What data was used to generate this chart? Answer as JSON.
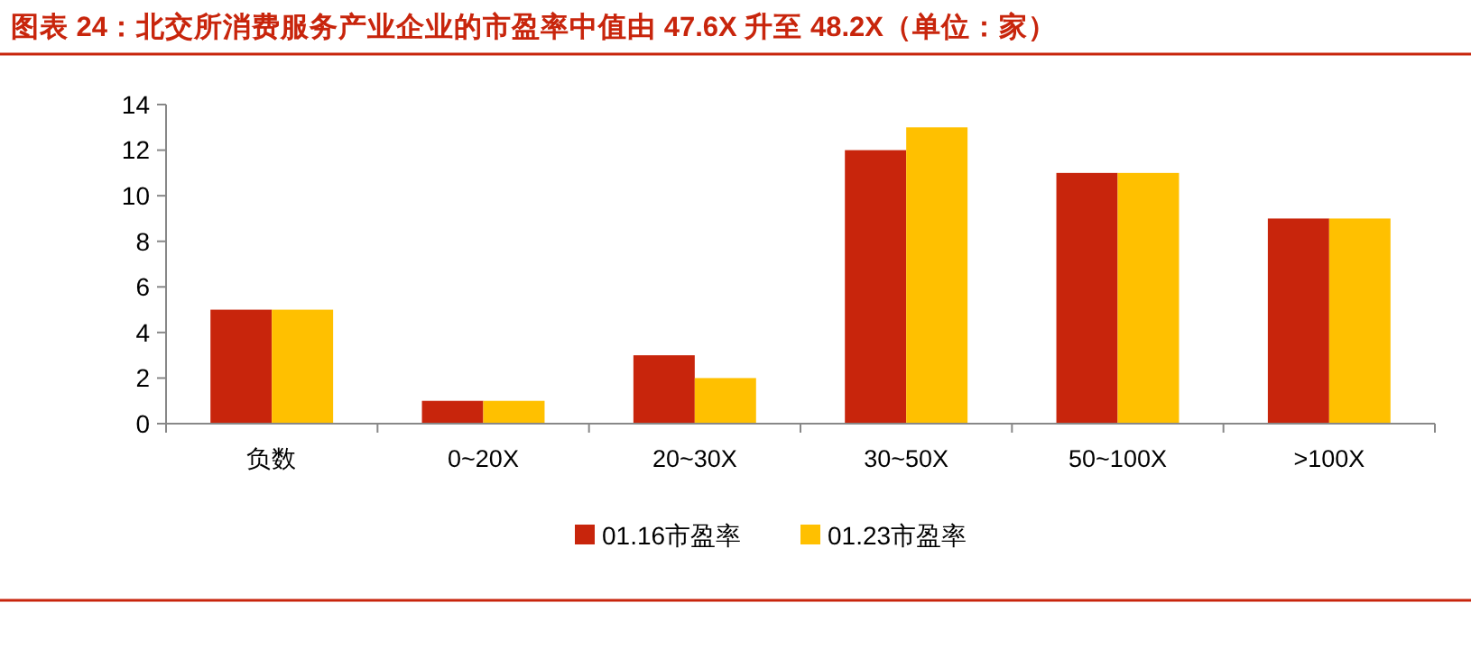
{
  "chart_data": {
    "type": "bar",
    "title": "图表 24：北交所消费服务产业企业的市盈率中值由 47.6X 升至 48.2X（单位：家）",
    "categories": [
      "负数",
      "0~20X",
      "20~30X",
      "30~50X",
      "50~100X",
      ">100X"
    ],
    "series": [
      {
        "name": "01.16市盈率",
        "color": "#c8250c",
        "values": [
          5,
          1,
          3,
          12,
          11,
          9
        ]
      },
      {
        "name": "01.23市盈率",
        "color": "#ffc000",
        "values": [
          5,
          1,
          2,
          13,
          11,
          9
        ]
      }
    ],
    "ylim": [
      0,
      14
    ],
    "yticks": [
      0,
      2,
      4,
      6,
      8,
      10,
      12,
      14
    ],
    "grid": false,
    "legend": "bottom"
  }
}
